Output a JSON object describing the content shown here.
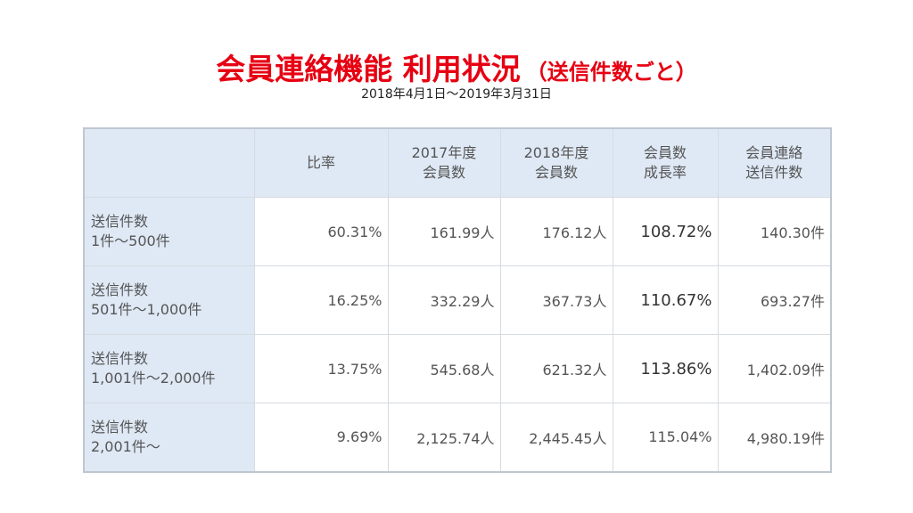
{
  "title": {
    "main": "会員連絡機能 利用状況",
    "sub": "（送信件数ごと）"
  },
  "period": "2018年4月1日〜2019年3月31日",
  "table": {
    "headers": [
      {
        "line1": "",
        "line2": ""
      },
      {
        "line1": "比率",
        "line2": ""
      },
      {
        "line1": "2017年度",
        "line2": "会員数"
      },
      {
        "line1": "2018年度",
        "line2": "会員数"
      },
      {
        "line1": "会員数",
        "line2": "成長率"
      },
      {
        "line1": "会員連絡",
        "line2": "送信件数"
      }
    ],
    "rows": [
      {
        "label1": "送信件数",
        "label2": "1件〜500件",
        "ratio": "60.31%",
        "members_2017": "161.99人",
        "members_2018": "176.12人",
        "growth": "108.72%",
        "sends": "140.30件"
      },
      {
        "label1": "送信件数",
        "label2": "501件〜1,000件",
        "ratio": "16.25%",
        "members_2017": "332.29人",
        "members_2018": "367.73人",
        "growth": "110.67%",
        "sends": "693.27件"
      },
      {
        "label1": "送信件数",
        "label2": "1,001件〜2,000件",
        "ratio": "13.75%",
        "members_2017": "545.68人",
        "members_2018": "621.32人",
        "growth": "113.86%",
        "sends": "1,402.09件"
      },
      {
        "label1": "送信件数",
        "label2": "2,001件〜",
        "ratio": "9.69%",
        "members_2017": "2,125.74人",
        "members_2018": "2,445.45人",
        "growth": "115.04%",
        "sends": "4,980.19件"
      }
    ]
  }
}
